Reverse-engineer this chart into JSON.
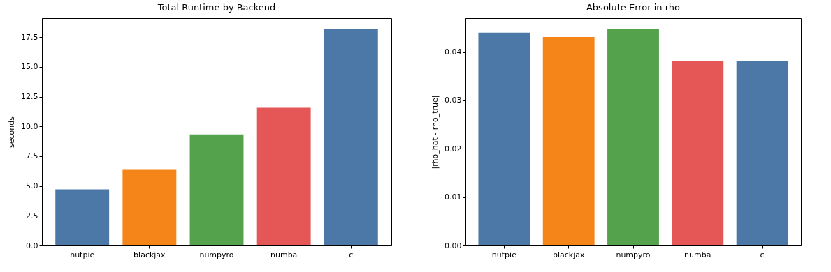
{
  "chart_data": [
    {
      "type": "bar",
      "title": "Total Runtime by Backend",
      "ylabel": "seconds",
      "categories": [
        "nutpie",
        "blackjax",
        "numpyro",
        "numba",
        "c"
      ],
      "values": [
        4.72,
        6.35,
        9.32,
        11.56,
        18.15
      ],
      "colors": [
        "#4c78a8",
        "#f58518",
        "#54a24b",
        "#e45756",
        "#4c78a8"
      ],
      "ylim": [
        0,
        19.09
      ],
      "yticks": [
        {
          "value": 0,
          "label": "0.0"
        },
        {
          "value": 2.5,
          "label": "2.5"
        },
        {
          "value": 5,
          "label": "5.0"
        },
        {
          "value": 7.5,
          "label": "7.5"
        },
        {
          "value": 10,
          "label": "10.0"
        },
        {
          "value": 12.5,
          "label": "12.5"
        },
        {
          "value": 15,
          "label": "15.0"
        },
        {
          "value": 17.5,
          "label": "17.5"
        }
      ],
      "grid": false,
      "legend": false
    },
    {
      "type": "bar",
      "title": "Absolute Error in rho",
      "ylabel": "|rho_hat - rho_true|",
      "categories": [
        "nutpie",
        "blackjax",
        "numpyro",
        "numba",
        "c"
      ],
      "values": [
        0.044,
        0.0431,
        0.0447,
        0.0382,
        0.0382
      ],
      "colors": [
        "#4c78a8",
        "#f58518",
        "#54a24b",
        "#e45756",
        "#4c78a8"
      ],
      "ylim": [
        0,
        0.047
      ],
      "yticks": [
        {
          "value": 0,
          "label": "0.00"
        },
        {
          "value": 0.01,
          "label": "0.01"
        },
        {
          "value": 0.02,
          "label": "0.02"
        },
        {
          "value": 0.03,
          "label": "0.03"
        },
        {
          "value": 0.04,
          "label": "0.04"
        }
      ],
      "grid": false,
      "legend": false
    }
  ]
}
